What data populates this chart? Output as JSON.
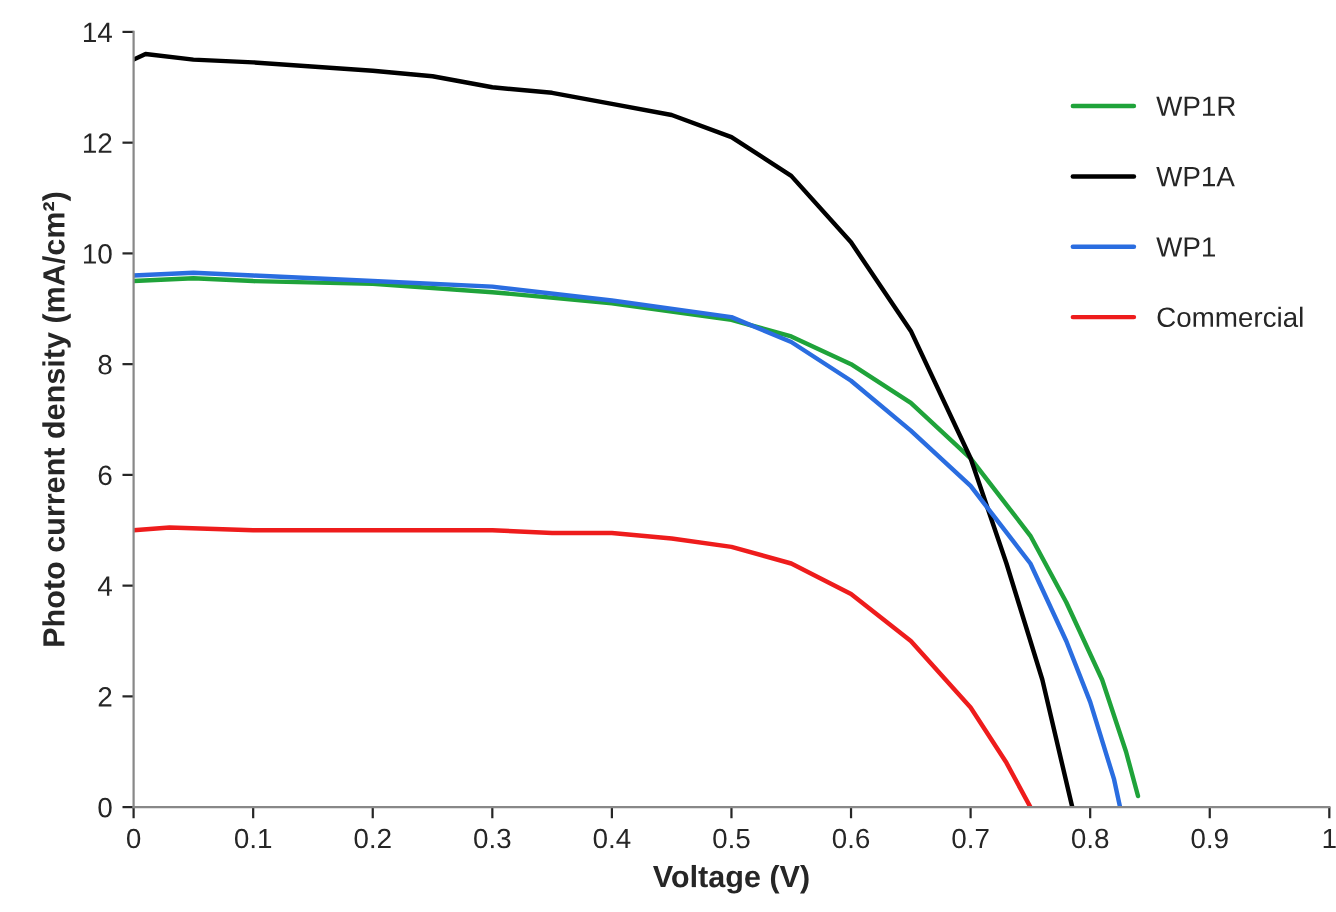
{
  "chart_data": {
    "type": "line",
    "xlabel": "Voltage (V)",
    "ylabel": "Photo current density (mA/cm²)",
    "xlim": [
      0,
      1
    ],
    "xticks": [
      0,
      0.1,
      0.2,
      0.3,
      0.4,
      0.5,
      0.6,
      0.7,
      0.8,
      0.9,
      1
    ],
    "ylim": [
      0,
      14
    ],
    "yticks": [
      0,
      2,
      4,
      6,
      8,
      10,
      12,
      14
    ],
    "grid": false,
    "legend": "top right",
    "marker": "none",
    "line_style": "solid",
    "series": [
      {
        "name": "WP1R",
        "color": "#1fa33a",
        "x": [
          0,
          0.05,
          0.1,
          0.2,
          0.3,
          0.4,
          0.5,
          0.55,
          0.6,
          0.65,
          0.7,
          0.75,
          0.78,
          0.81,
          0.83,
          0.84
        ],
        "values": [
          9.5,
          9.55,
          9.5,
          9.45,
          9.3,
          9.1,
          8.8,
          8.5,
          8.0,
          7.3,
          6.3,
          4.9,
          3.7,
          2.3,
          1.0,
          0.2
        ]
      },
      {
        "name": "WP1A",
        "color": "#000000",
        "x": [
          0,
          0.01,
          0.05,
          0.1,
          0.2,
          0.25,
          0.3,
          0.35,
          0.4,
          0.45,
          0.5,
          0.55,
          0.6,
          0.65,
          0.7,
          0.73,
          0.76,
          0.785
        ],
        "values": [
          13.5,
          13.6,
          13.5,
          13.45,
          13.3,
          13.2,
          13.0,
          12.9,
          12.7,
          12.5,
          12.1,
          11.4,
          10.2,
          8.6,
          6.3,
          4.4,
          2.3,
          0
        ]
      },
      {
        "name": "WP1",
        "color": "#2a6de0",
        "x": [
          0,
          0.05,
          0.1,
          0.2,
          0.3,
          0.4,
          0.5,
          0.55,
          0.6,
          0.65,
          0.7,
          0.75,
          0.78,
          0.8,
          0.82,
          0.825
        ],
        "values": [
          9.6,
          9.65,
          9.6,
          9.5,
          9.4,
          9.15,
          8.85,
          8.4,
          7.7,
          6.8,
          5.8,
          4.4,
          3.0,
          1.9,
          0.5,
          0
        ]
      },
      {
        "name": "Commercial",
        "color": "#ee1c1c",
        "x": [
          0,
          0.03,
          0.1,
          0.2,
          0.3,
          0.35,
          0.4,
          0.45,
          0.5,
          0.55,
          0.6,
          0.65,
          0.7,
          0.73,
          0.75
        ],
        "values": [
          5.0,
          5.05,
          5.0,
          5.0,
          5.0,
          4.95,
          4.95,
          4.85,
          4.7,
          4.4,
          3.85,
          3.0,
          1.8,
          0.8,
          0
        ]
      }
    ]
  }
}
